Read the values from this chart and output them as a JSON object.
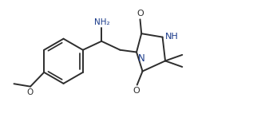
{
  "bg_color": "#ffffff",
  "line_color": "#2d2d2d",
  "text_color": "#2d2d2d",
  "nh_color": "#1a3a8a",
  "n_color": "#1a3a8a",
  "figsize": [
    3.27,
    1.57
  ],
  "dpi": 100,
  "xlim": [
    0,
    9.5
  ],
  "ylim": [
    0,
    4.5
  ]
}
